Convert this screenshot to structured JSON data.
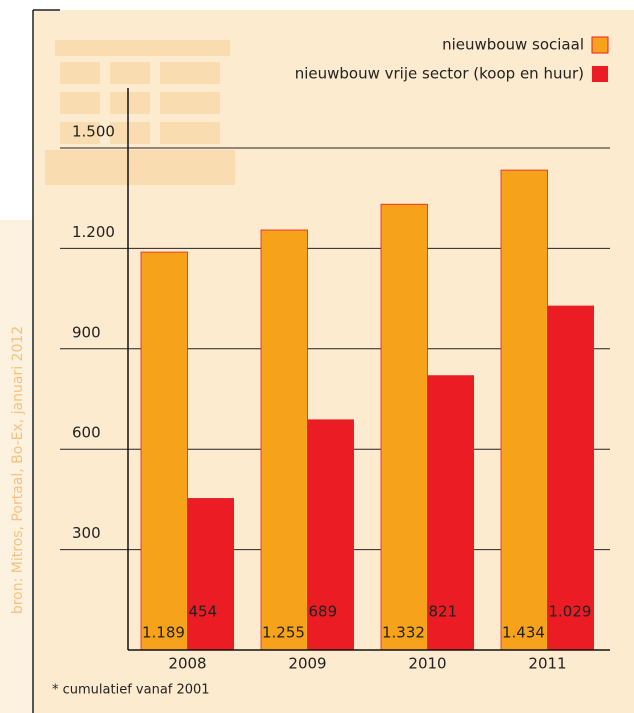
{
  "chart_data": {
    "type": "bar",
    "categories": [
      "2008",
      "2009",
      "2010",
      "2011"
    ],
    "series": [
      {
        "name": "nieuwbouw sociaal",
        "color": "#f7a21b",
        "values": [
          1189,
          1255,
          1332,
          1434
        ],
        "value_labels": [
          "1.189",
          "1.255",
          "1.332",
          "1.434"
        ]
      },
      {
        "name": "nieuwbouw vrije sector (koop en huur)",
        "color": "#ec1c24",
        "values": [
          454,
          689,
          821,
          1029
        ],
        "value_labels": [
          "454",
          "689",
          "821",
          "1.029"
        ]
      }
    ],
    "ylim": [
      0,
      1500
    ],
    "yticks": [
      {
        "value": 300,
        "label": "300"
      },
      {
        "value": 600,
        "label": "600"
      },
      {
        "value": 900,
        "label": "900"
      },
      {
        "value": 1200,
        "label": "1.200"
      },
      {
        "value": 1500,
        "label": "1.500"
      }
    ],
    "grid": true,
    "legend": "top-right",
    "footnote": "* cumulatief vanaf 2001",
    "source": "bron: Mitros, Portaal, Bo-Ex, januari 2012"
  }
}
